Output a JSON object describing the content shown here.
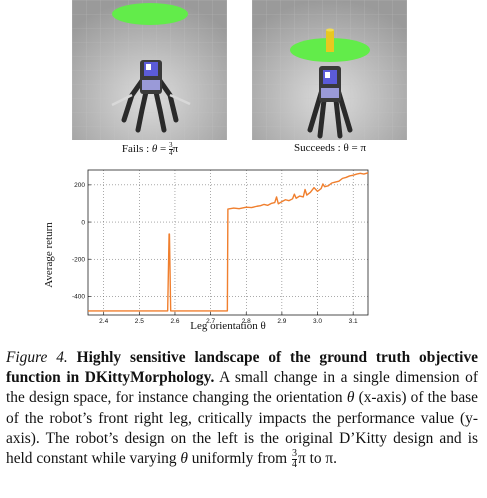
{
  "images": {
    "left_alt": "Render of the original D'Kitty robot design",
    "right_alt": "Render of the modified D'Kitty robot design"
  },
  "panels": {
    "left": {
      "prefix": "Fails : ",
      "theta": "θ",
      "eq": " = ",
      "frac_num": "3",
      "frac_den": "4",
      "pi": "π"
    },
    "right": {
      "label": "Succeeds : θ = π"
    }
  },
  "colors": {
    "line": "#f07f2e",
    "target": "#62ec4a",
    "floor": "#b9b9b9",
    "axis": "#222222"
  },
  "chart_data": {
    "type": "line",
    "xlabel": "Leg orientation θ",
    "ylabel": "Average return",
    "xlim": [
      2.356,
      3.1416
    ],
    "ylim": [
      -500,
      280
    ],
    "x_ticks": [
      2.4,
      2.5,
      2.6,
      2.7,
      2.8,
      2.9,
      3.0,
      3.1
    ],
    "x_tick_labels": [
      "2.4",
      "2.5",
      "2.6",
      "2.7",
      "2.8",
      "2.9",
      "3.0",
      "3.1"
    ],
    "y_ticks": [
      200,
      0,
      -200,
      -400
    ],
    "y_tick_labels": [
      "200",
      "0",
      "-200",
      "-400"
    ],
    "grid": true,
    "series": [
      {
        "x": [
          2.356,
          2.5,
          2.575,
          2.5795,
          2.5835,
          2.5845,
          2.588,
          2.5915,
          2.6,
          2.7,
          2.747,
          2.7485,
          2.765,
          2.78,
          2.8,
          2.815,
          2.83,
          2.84,
          2.85,
          2.86,
          2.87,
          2.88,
          2.885,
          2.89,
          2.9,
          2.91,
          2.92,
          2.93,
          2.935,
          2.94,
          2.95,
          2.96,
          2.965,
          2.97,
          2.98,
          2.99,
          3.0,
          3.01,
          3.015,
          3.02,
          3.03,
          3.04,
          3.05,
          3.06,
          3.07,
          3.08,
          3.09,
          3.1,
          3.11,
          3.12,
          3.13,
          3.1416
        ],
        "y": [
          -478,
          -478,
          -478,
          -478,
          -65,
          -65,
          -478,
          -478,
          -478,
          -478,
          -478,
          70,
          75,
          72,
          80,
          78,
          85,
          88,
          95,
          90,
          100,
          105,
          135,
          98,
          110,
          120,
          115,
          125,
          150,
          128,
          140,
          135,
          175,
          145,
          160,
          185,
          165,
          180,
          205,
          190,
          195,
          210,
          215,
          220,
          235,
          240,
          248,
          252,
          258,
          262,
          258,
          265
        ]
      }
    ]
  },
  "caption": {
    "figure_label": "Figure 4.",
    "bold_title": "Highly sensitive landscape of the ground truth objective function in DKittyMorphology.",
    "body_1": " A small change in a single dimension of the design space, for instance changing the orientation ",
    "theta": "θ",
    "body_2": " (x-axis) of the base of the robot’s front right leg, critically impacts the performance value (y-axis). The robot’s design on the left is the original D’Kitty design and is held constant while varying ",
    "body_3": " uniformly from ",
    "frac_num": "3",
    "frac_den": "4",
    "pi": "π",
    "body_4": " to π."
  }
}
